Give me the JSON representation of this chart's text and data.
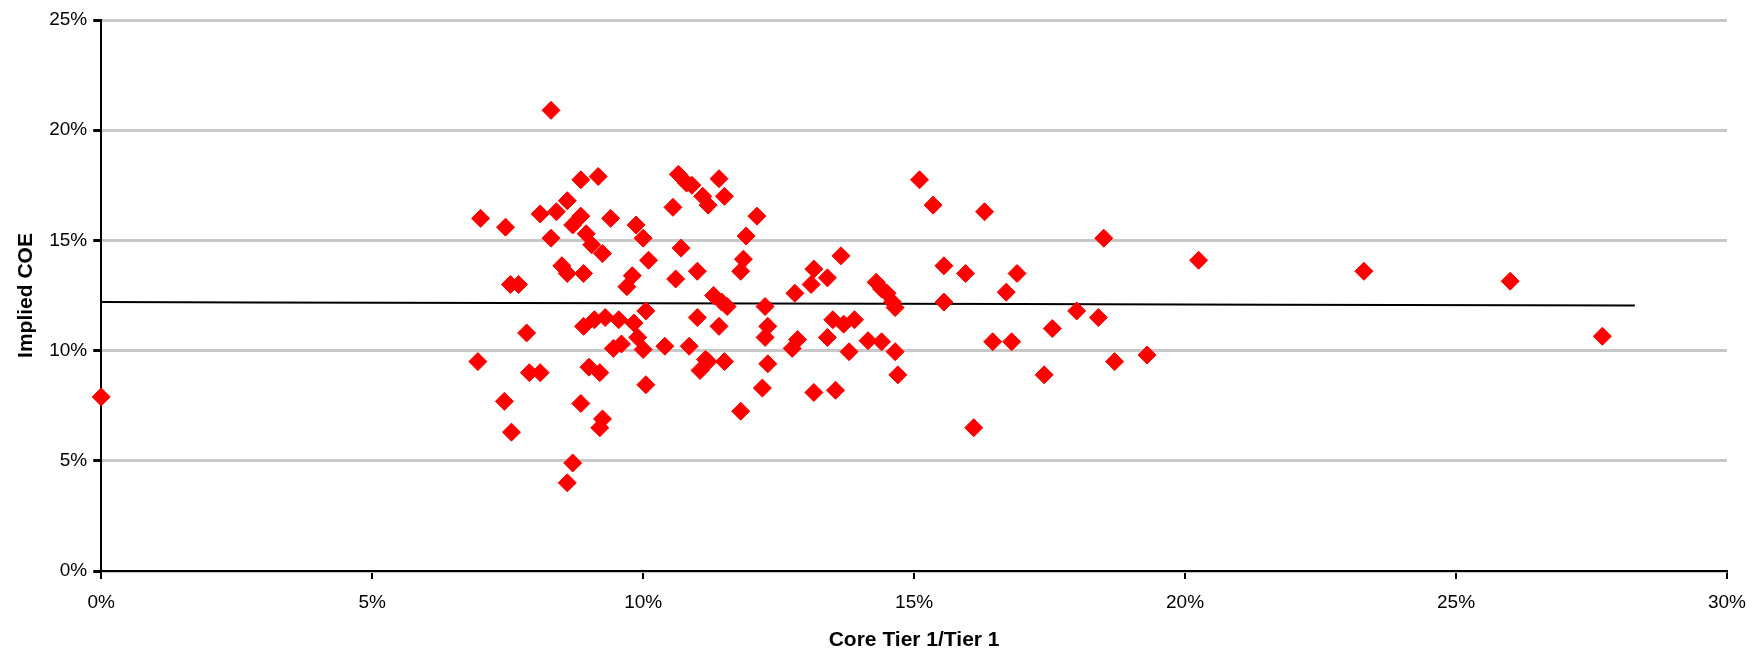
{
  "chart_data": {
    "type": "scatter",
    "xlabel": "Core Tier 1/Tier 1",
    "ylabel": "Implied COE",
    "marker": "diamond",
    "grid": "y",
    "legend": false,
    "xlim": [
      0,
      30
    ],
    "ylim": [
      0,
      25
    ],
    "xticks": [
      {
        "value": 0,
        "label": "0%"
      },
      {
        "value": 5,
        "label": "5%"
      },
      {
        "value": 10,
        "label": "10%"
      },
      {
        "value": 15,
        "label": "15%"
      },
      {
        "value": 20,
        "label": "20%"
      },
      {
        "value": 25,
        "label": "25%"
      },
      {
        "value": 30,
        "label": "30%"
      }
    ],
    "yticks": [
      {
        "value": 0,
        "label": "0%"
      },
      {
        "value": 5,
        "label": "5%"
      },
      {
        "value": 10,
        "label": "10%"
      },
      {
        "value": 15,
        "label": "15%"
      },
      {
        "value": 20,
        "label": "20%"
      },
      {
        "value": 25,
        "label": "25%"
      }
    ],
    "series": [
      {
        "color": "#ff0000",
        "x": [
          0,
          7.0,
          6.95,
          7.46,
          7.44,
          7.57,
          7.55,
          7.7,
          7.85,
          7.9,
          8.1,
          8.3,
          8.1,
          8.3,
          8.4,
          8.5,
          8.6,
          8.7,
          8.6,
          8.85,
          8.85,
          8.9,
          8.95,
          9.05,
          8.9,
          9.0,
          8.85,
          8.7,
          8.6,
          9.17,
          9.25,
          9.1,
          9.3,
          9.2,
          9.25,
          9.2,
          9.4,
          9.45,
          9.55,
          9.6,
          9.7,
          9.8,
          9.87,
          9.83,
          9.9,
          10.0,
          10.0,
          10.05,
          10.05,
          10.1,
          10.4,
          10.55,
          10.6,
          10.65,
          10.7,
          10.8,
          10.85,
          10.9,
          11.0,
          11.0,
          11.05,
          11.1,
          11.2,
          11.15,
          11.2,
          11.3,
          11.4,
          11.4,
          11.45,
          11.5,
          11.55,
          11.5,
          11.8,
          11.8,
          11.85,
          11.9,
          12.1,
          12.2,
          12.25,
          12.3,
          12.3,
          12.25,
          12.75,
          12.8,
          12.85,
          13.1,
          13.15,
          13.15,
          13.4,
          13.4,
          13.5,
          13.55,
          13.65,
          13.7,
          13.8,
          13.9,
          14.15,
          14.3,
          14.4,
          14.4,
          14.5,
          14.6,
          14.65,
          14.65,
          14.7,
          15.1,
          15.35,
          15.55,
          15.55,
          15.95,
          16.1,
          16.3,
          16.45,
          16.7,
          16.8,
          16.9,
          17.4,
          17.55,
          18.0,
          18.4,
          18.5,
          18.7,
          19.3,
          20.25,
          23.3,
          26.0,
          27.7
        ],
        "values": [
          7.9,
          16.0,
          9.5,
          15.6,
          7.7,
          6.3,
          13.0,
          13.0,
          10.8,
          9.0,
          9.0,
          20.9,
          16.2,
          15.1,
          16.3,
          13.85,
          16.8,
          15.7,
          13.5,
          17.75,
          16.1,
          13.5,
          15.3,
          14.8,
          11.1,
          9.25,
          7.6,
          4.9,
          4.0,
          17.9,
          14.4,
          11.4,
          11.5,
          9.0,
          6.9,
          6.5,
          16.0,
          10.1,
          11.4,
          10.3,
          12.9,
          13.4,
          15.7,
          11.25,
          10.6,
          15.1,
          10.05,
          11.8,
          8.45,
          14.1,
          10.2,
          16.5,
          13.25,
          18.0,
          14.65,
          17.6,
          10.2,
          17.5,
          13.6,
          11.5,
          9.1,
          17.0,
          16.6,
          9.6,
          9.5,
          12.5,
          11.1,
          17.8,
          12.2,
          17.0,
          12.0,
          9.5,
          7.25,
          13.6,
          14.15,
          15.2,
          16.1,
          8.3,
          12.0,
          11.1,
          9.4,
          10.6,
          10.1,
          12.6,
          10.5,
          13.0,
          13.7,
          8.1,
          13.3,
          10.6,
          11.4,
          8.2,
          14.3,
          11.2,
          9.95,
          11.4,
          10.45,
          13.1,
          12.8,
          10.4,
          12.6,
          12.2,
          11.95,
          9.95,
          8.9,
          17.75,
          16.6,
          13.85,
          12.2,
          13.5,
          6.5,
          16.3,
          10.4,
          12.65,
          10.4,
          13.5,
          8.9,
          11.0,
          11.8,
          11.5,
          15.1,
          9.5,
          9.8,
          14.1,
          13.6,
          13.15,
          10.65
        ]
      },
      {
        "type": "line",
        "color": "#000000",
        "marker": "none",
        "x": [
          0,
          28.3
        ],
        "values": [
          12.2,
          12.05
        ]
      }
    ]
  }
}
